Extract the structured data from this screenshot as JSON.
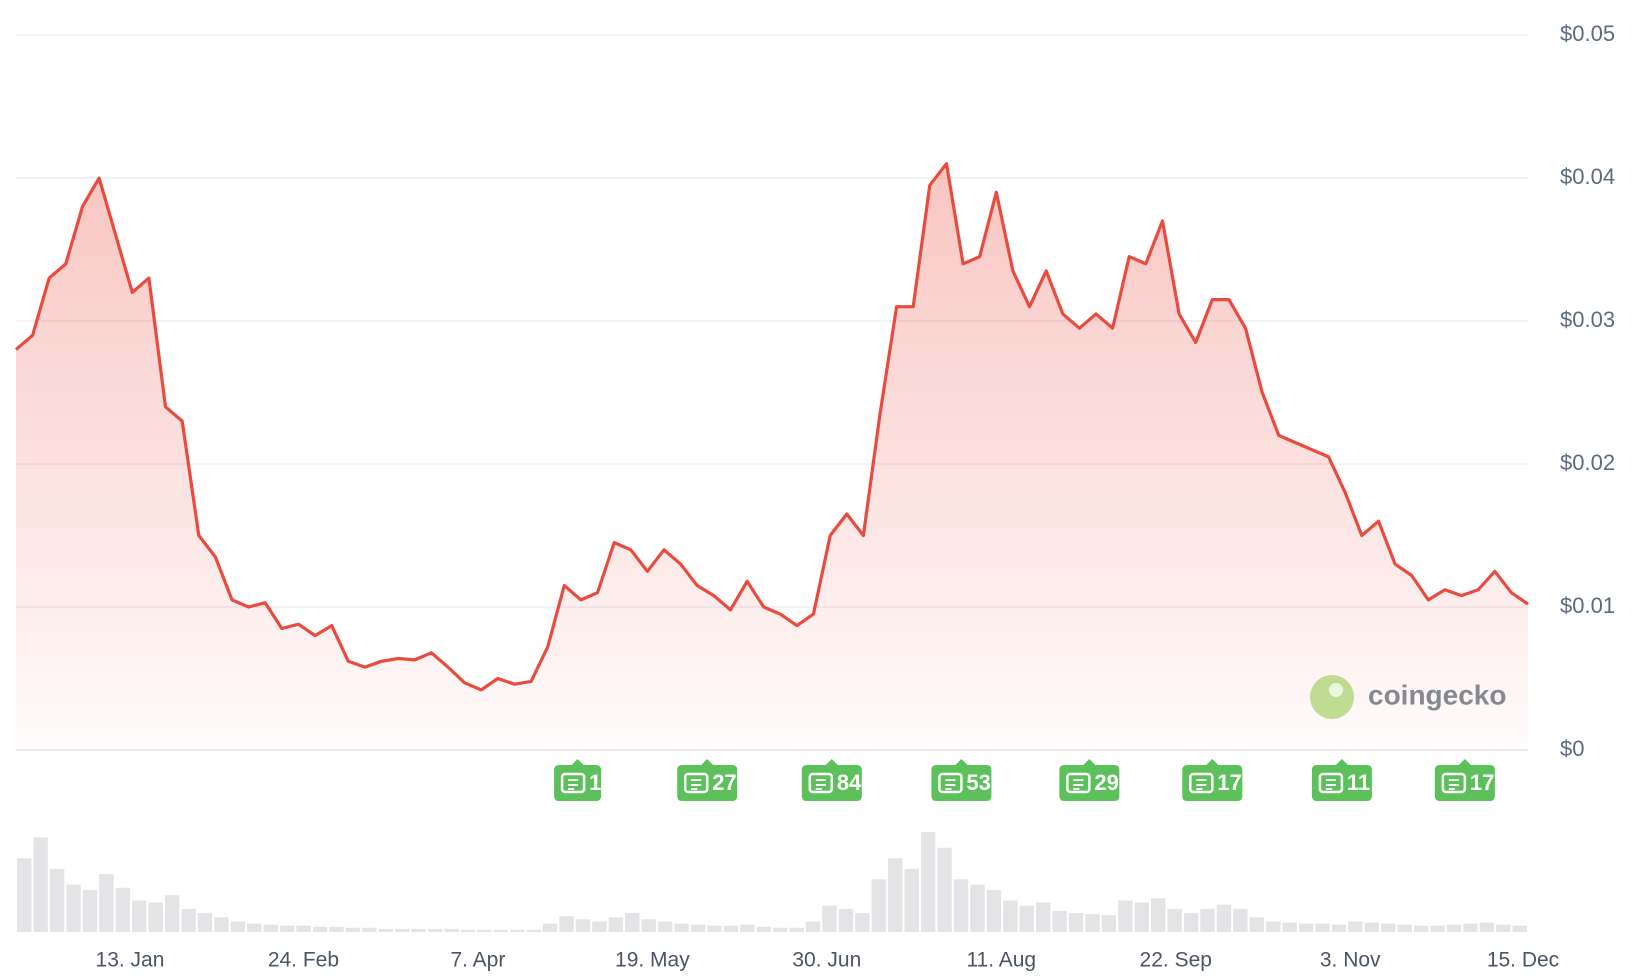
{
  "chart_data": {
    "type": "area",
    "watermark": "coingecko",
    "color": "#ea4b3f",
    "ylim": [
      0,
      0.05
    ],
    "yticks": [
      {
        "value": 0,
        "label": "$0"
      },
      {
        "value": 0.01,
        "label": "$0.01"
      },
      {
        "value": 0.02,
        "label": "$0.02"
      },
      {
        "value": 0.03,
        "label": "$0.03"
      },
      {
        "value": 0.04,
        "label": "$0.04"
      },
      {
        "value": 0.05,
        "label": "$0.05"
      }
    ],
    "xlim": [
      0,
      91
    ],
    "xticks": [
      {
        "value": 6.86,
        "label": "13. Jan"
      },
      {
        "value": 17.3,
        "label": "24. Feb"
      },
      {
        "value": 27.8,
        "label": "7. Apr"
      },
      {
        "value": 38.3,
        "label": "19. May"
      },
      {
        "value": 48.8,
        "label": "30. Jun"
      },
      {
        "value": 59.3,
        "label": "11. Aug"
      },
      {
        "value": 69.8,
        "label": "22. Sep"
      },
      {
        "value": 80.3,
        "label": "3. Nov"
      },
      {
        "value": 90.7,
        "label": "15. Dec"
      }
    ],
    "grid": true,
    "series": [
      {
        "values": [
          0.028,
          0.029,
          0.033,
          0.034,
          0.038,
          0.04,
          0.036,
          0.032,
          0.033,
          0.024,
          0.023,
          0.015,
          0.0135,
          0.0105,
          0.01,
          0.0103,
          0.0085,
          0.0088,
          0.008,
          0.0087,
          0.0062,
          0.0058,
          0.0062,
          0.0064,
          0.0063,
          0.0068,
          0.0058,
          0.0047,
          0.0042,
          0.005,
          0.0046,
          0.0048,
          0.0072,
          0.0115,
          0.0105,
          0.011,
          0.0145,
          0.014,
          0.0125,
          0.014,
          0.013,
          0.0115,
          0.0108,
          0.0098,
          0.0118,
          0.01,
          0.0095,
          0.0087,
          0.0095,
          0.015,
          0.0165,
          0.015,
          0.0235,
          0.031,
          0.031,
          0.0395,
          0.041,
          0.034,
          0.0345,
          0.039,
          0.0335,
          0.031,
          0.0335,
          0.0305,
          0.0295,
          0.0305,
          0.0295,
          0.0345,
          0.034,
          0.037,
          0.0305,
          0.0285,
          0.0315,
          0.0315,
          0.0295,
          0.025,
          0.022,
          0.0215,
          0.021,
          0.0205,
          0.018,
          0.015,
          0.016,
          0.013,
          0.0122,
          0.0105,
          0.0112,
          0.0108,
          0.0112,
          0.0125,
          0.011,
          0.0102
        ]
      }
    ],
    "volume": {
      "color": "#e4e4e6",
      "values": [
        70,
        90,
        60,
        45,
        40,
        55,
        42,
        30,
        28,
        35,
        22,
        18,
        14,
        10,
        8,
        7,
        6,
        6,
        5,
        5,
        4,
        4,
        3,
        3,
        3,
        3,
        3,
        2,
        2,
        2,
        2,
        2,
        8,
        15,
        12,
        10,
        14,
        18,
        12,
        10,
        8,
        7,
        6,
        6,
        7,
        5,
        4,
        4,
        10,
        25,
        22,
        18,
        50,
        70,
        60,
        95,
        80,
        50,
        45,
        40,
        30,
        25,
        28,
        20,
        18,
        17,
        16,
        30,
        28,
        32,
        22,
        18,
        22,
        26,
        22,
        14,
        10,
        9,
        8,
        8,
        7,
        10,
        9,
        8,
        7,
        6,
        6,
        7,
        8,
        9,
        7,
        6
      ]
    },
    "news": [
      {
        "x": 33.8,
        "count": 1
      },
      {
        "x": 41.6,
        "count": 27
      },
      {
        "x": 49.1,
        "count": 84
      },
      {
        "x": 56.9,
        "count": 53
      },
      {
        "x": 64.6,
        "count": 29
      },
      {
        "x": 72.0,
        "count": 17
      },
      {
        "x": 79.8,
        "count": 11
      },
      {
        "x": 87.2,
        "count": 17
      }
    ]
  }
}
